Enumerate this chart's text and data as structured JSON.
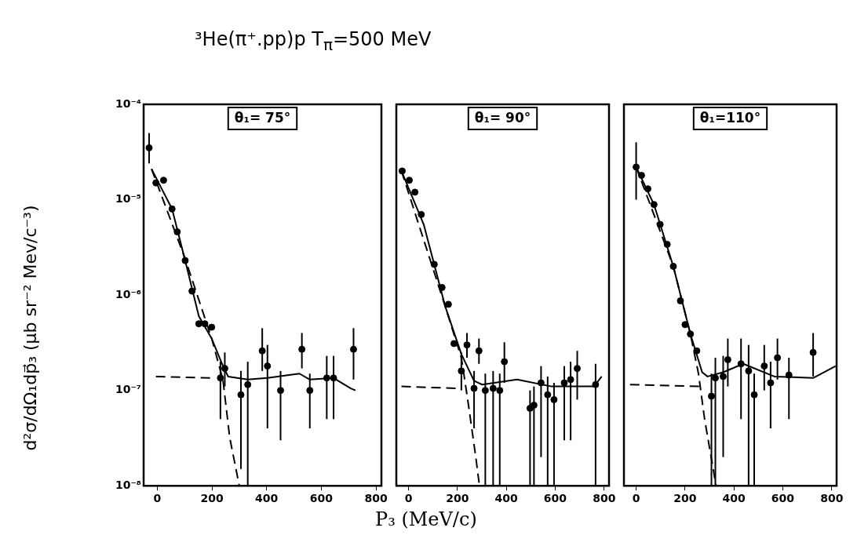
{
  "chart_data": [
    {
      "type": "scatter",
      "title": "³He(π⁺.pp)p T$_{π}$=500 MeV",
      "ylabel": "d²σ/dΩ₁dp⃗₃ (μb sr⁻² Mev/c⁻³)",
      "annotations": [
        "θ₁= 75°"
      ],
      "log": "y",
      "xlim": [
        -50,
        820
      ],
      "xticks": [
        0,
        200,
        400,
        600,
        800
      ],
      "ylim": [
        1e-08,
        0.0001
      ],
      "yticks": [
        {
          "value": 1e-08,
          "label": "10⁻⁸"
        },
        {
          "value": 1e-07,
          "label": "10⁻⁷"
        },
        {
          "value": 1e-06,
          "label": "10⁻⁶"
        },
        {
          "value": 1e-05,
          "label": "10⁻⁵"
        },
        {
          "value": 0.0001,
          "label": "10⁻⁴"
        }
      ],
      "grid": false,
      "legend": false,
      "series": [
        {
          "color": "#000000",
          "marker": "circle",
          "x": [
            -30,
            -5,
            23,
            54,
            73,
            102,
            127,
            152,
            174,
            199,
            231,
            247,
            306,
            331,
            384,
            403,
            451,
            529,
            558,
            620,
            645,
            718
          ],
          "values": [
            3.5e-05,
            1.5e-05,
            1.6e-05,
            8e-06,
            4.6e-06,
            2.3e-06,
            1.1e-06,
            5e-07,
            5e-07,
            4.6e-07,
            1.35e-07,
            1.7e-07,
            9e-08,
            1.15e-07,
            2.6e-07,
            1.8e-07,
            1e-07,
            2.7e-07,
            1e-07,
            1.35e-07,
            1.35e-07,
            2.7e-07
          ],
          "errors": [
            [
              2.4e-05,
              5e-05
            ],
            null,
            null,
            null,
            null,
            null,
            null,
            null,
            null,
            null,
            [
              5e-08,
              2e-07
            ],
            [
              1.1e-07,
              2.5e-07
            ],
            [
              1.5e-08,
              1.6e-07
            ],
            [
              1e-08,
              2e-07
            ],
            [
              1.6e-07,
              4.5e-07
            ],
            [
              4e-08,
              3e-07
            ],
            [
              3e-08,
              1.6e-07
            ],
            [
              1.7e-07,
              4e-07
            ],
            [
              4e-08,
              1.5e-07
            ],
            [
              5e-08,
              2.3e-07
            ],
            [
              5e-08,
              2.3e-07
            ],
            [
              1.3e-07,
              4.5e-07
            ]
          ]
        },
        {
          "type": "line",
          "color": "#000000",
          "line_style": "solid",
          "x": [
            -21,
            54,
            102,
            152,
            199,
            237,
            259,
            331,
            403,
            520,
            558,
            645,
            708,
            725
          ],
          "values": [
            2.1e-05,
            8e-06,
            2.3e-06,
            6e-07,
            3.5e-07,
            1.9e-07,
            1.4e-07,
            1.3e-07,
            1.35e-07,
            1.5e-07,
            1.3e-07,
            1.35e-07,
            1.05e-07,
            1e-07
          ]
        },
        {
          "type": "line",
          "color": "#000000",
          "line_style": "dashed",
          "x": [
            -21,
            102,
            199,
            240,
            265,
            300
          ],
          "values": [
            2.1e-05,
            2.4e-06,
            3.5e-07,
            1.3e-07,
            3.2e-08,
            1e-08
          ]
        },
        {
          "type": "line",
          "color": "#000000",
          "line_style": "dashed",
          "x": [
            -5,
            199
          ],
          "values": [
            1.4e-07,
            1.35e-07
          ]
        }
      ]
    },
    {
      "type": "scatter",
      "xlabel": "P₃ (MeV/c)",
      "annotations": [
        "θ₁= 90°"
      ],
      "log": "y",
      "tick_labels": "x",
      "xlim": [
        -50,
        820
      ],
      "xticks": [
        0,
        200,
        400,
        600,
        800
      ],
      "ylim": [
        1e-08,
        0.0001
      ],
      "grid": false,
      "legend": false,
      "series": [
        {
          "color": "#000000",
          "marker": "circle",
          "x": [
            -26,
            3,
            26,
            52,
            105,
            137,
            163,
            186,
            216,
            239,
            268,
            288,
            314,
            346,
            373,
            392,
            497,
            513,
            542,
            569,
            595,
            637,
            663,
            690,
            765
          ],
          "values": [
            2e-05,
            1.6e-05,
            1.2e-05,
            7e-06,
            2.1e-06,
            1.2e-06,
            8e-07,
            3.1e-07,
            1.6e-07,
            3e-07,
            1.05e-07,
            2.6e-07,
            1e-07,
            1.05e-07,
            1e-07,
            2e-07,
            6.5e-08,
            7e-08,
            1.2e-07,
            9e-08,
            8e-08,
            1.2e-07,
            1.3e-07,
            1.7e-07,
            1.15e-07
          ],
          "errors": [
            null,
            null,
            null,
            null,
            null,
            null,
            null,
            null,
            [
              1e-07,
              2.5e-07
            ],
            [
              2.2e-07,
              4e-07
            ],
            [
              4e-08,
              1.6e-07
            ],
            [
              1.9e-07,
              3.5e-07
            ],
            [
              1e-08,
              1.5e-07
            ],
            [
              1e-08,
              1.6e-07
            ],
            [
              1e-08,
              1.5e-07
            ],
            [
              1.2e-07,
              3.2e-07
            ],
            [
              1e-08,
              1e-07
            ],
            [
              1e-08,
              1.1e-07
            ],
            [
              2e-08,
              1.8e-07
            ],
            [
              1e-08,
              1.4e-07
            ],
            [
              1e-08,
              1.2e-07
            ],
            [
              3e-08,
              1.8e-07
            ],
            [
              3e-08,
              2e-07
            ],
            [
              8e-08,
              2.6e-07
            ],
            [
              1e-08,
              1.9e-07
            ]
          ]
        },
        {
          "type": "line",
          "color": "#000000",
          "line_style": "solid",
          "x": [
            -29,
            62,
            150,
            216,
            268,
            301,
            444,
            585,
            758,
            790
          ],
          "values": [
            2e-05,
            5.5e-06,
            7.6e-07,
            2.4e-07,
            1.26e-07,
            1.15e-07,
            1.3e-07,
            1.1e-07,
            1.1e-07,
            1.4e-07
          ]
        },
        {
          "type": "line",
          "color": "#000000",
          "line_style": "dashed",
          "x": [
            -29,
            150,
            216,
            242,
            275,
            290
          ],
          "values": [
            2e-05,
            7.6e-07,
            2.2e-07,
            8e-08,
            2e-08,
            1e-08
          ]
        },
        {
          "type": "line",
          "color": "#000000",
          "line_style": "dashed",
          "x": [
            -29,
            203
          ],
          "values": [
            1.1e-07,
            1.05e-07
          ]
        }
      ]
    },
    {
      "type": "scatter",
      "annotations": [
        "θ₁=110°"
      ],
      "log": "y",
      "tick_labels": "x",
      "xlim": [
        -50,
        820
      ],
      "xticks": [
        0,
        200,
        400,
        600,
        800
      ],
      "ylim": [
        1e-08,
        0.0001
      ],
      "grid": false,
      "legend": false,
      "series": [
        {
          "color": "#000000",
          "marker": "circle",
          "x": [
            0,
            22,
            48,
            73,
            98,
            127,
            152,
            181,
            200,
            222,
            248,
            308,
            324,
            356,
            375,
            429,
            460,
            483,
            524,
            550,
            578,
            625,
            724
          ],
          "values": [
            2.2e-05,
            1.8e-05,
            1.3e-05,
            8.9e-06,
            5.5e-06,
            3.4e-06,
            2e-06,
            8.7e-07,
            4.9e-07,
            3.9e-07,
            2.6e-07,
            8.7e-08,
            1.35e-07,
            1.4e-07,
            2.1e-07,
            1.9e-07,
            1.6e-07,
            9e-08,
            1.8e-07,
            1.2e-07,
            2.2e-07,
            1.45e-07,
            2.5e-07
          ],
          "errors": [
            [
              1e-05,
              4e-05
            ],
            null,
            null,
            null,
            null,
            null,
            null,
            null,
            null,
            null,
            null,
            [
              1e-08,
              1.5e-07
            ],
            [
              1e-08,
              2.2e-07
            ],
            [
              2e-08,
              2.3e-07
            ],
            [
              1.1e-07,
              3.5e-07
            ],
            [
              5e-08,
              3.5e-07
            ],
            [
              1e-08,
              3e-07
            ],
            [
              1e-08,
              1.5e-07
            ],
            [
              1e-07,
              3e-07
            ],
            [
              4e-08,
              2e-07
            ],
            [
              1.3e-07,
              3.5e-07
            ],
            [
              5e-08,
              2.2e-07
            ],
            [
              1.4e-07,
              4e-07
            ]
          ]
        },
        {
          "type": "line",
          "color": "#000000",
          "line_style": "solid",
          "x": [
            0,
            73,
            152,
            222,
            270,
            292,
            356,
            438,
            565,
            724,
            816
          ],
          "values": [
            2.2e-05,
            8.9e-06,
            2e-06,
            3.9e-07,
            1.55e-07,
            1.4e-07,
            1.55e-07,
            1.9e-07,
            1.4e-07,
            1.35e-07,
            1.8e-07
          ]
        },
        {
          "type": "line",
          "color": "#000000",
          "line_style": "dashed",
          "x": [
            0,
            152,
            222,
            255,
            280,
            327
          ],
          "values": [
            2.2e-05,
            2e-06,
            3.9e-07,
            1.5e-07,
            5e-08,
            1e-08
          ]
        },
        {
          "type": "line",
          "color": "#000000",
          "line_style": "dashed",
          "x": [
            -25,
            260
          ],
          "values": [
            1.15e-07,
            1.1e-07
          ]
        }
      ]
    }
  ]
}
